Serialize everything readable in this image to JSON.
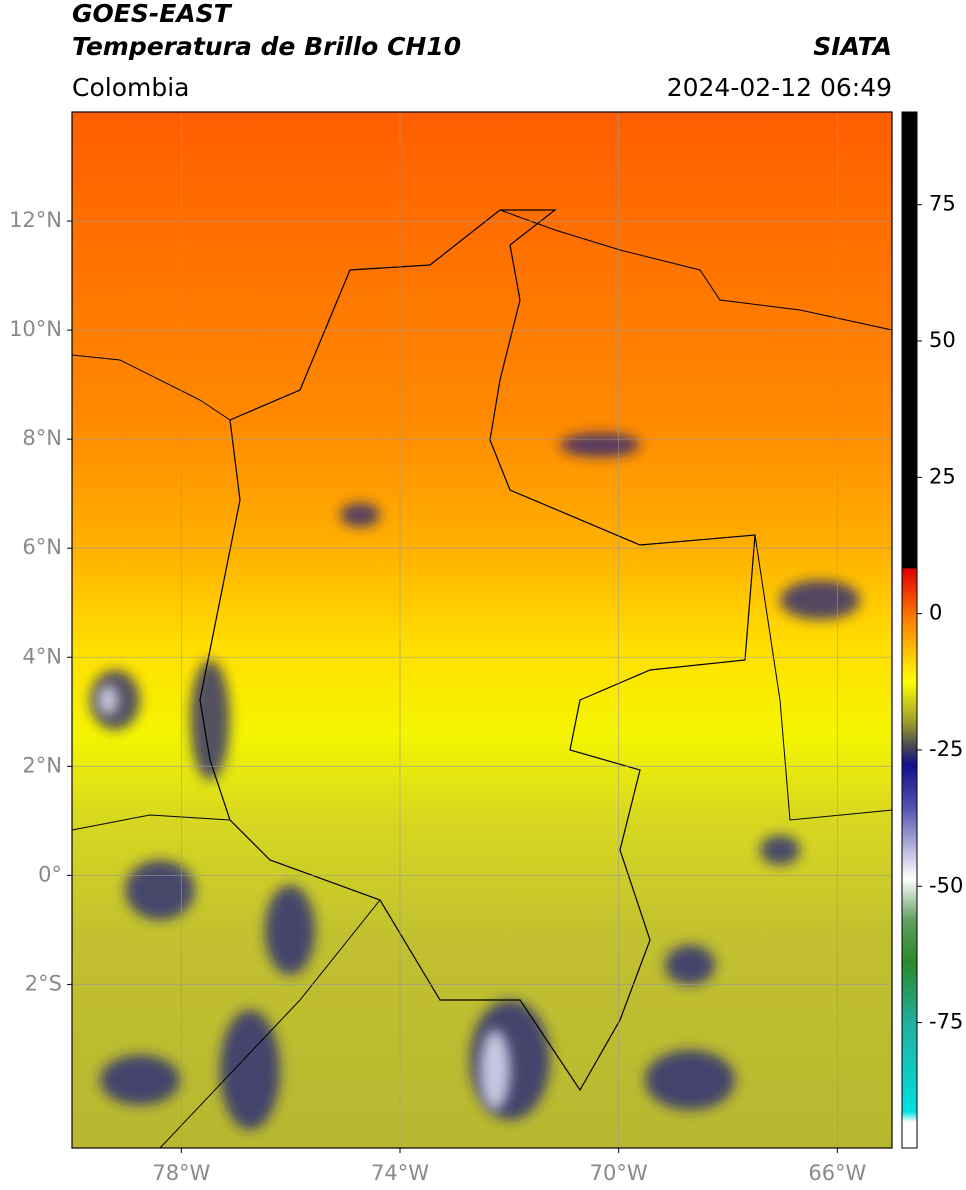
{
  "header": {
    "satellite": "GOES-EAST",
    "product": "Temperatura de Brillo CH10",
    "source": "SIATA",
    "region": "Colombia",
    "datetime": "2024-02-12 06:49"
  },
  "map": {
    "xlim": [
      -80,
      -65
    ],
    "ylim": [
      -5,
      14
    ],
    "xticks": [
      {
        "value": -78,
        "label": "78°W"
      },
      {
        "value": -74,
        "label": "74°W"
      },
      {
        "value": -70,
        "label": "70°W"
      },
      {
        "value": -66,
        "label": "66°W"
      }
    ],
    "yticks": [
      {
        "value": 12,
        "label": "12°N"
      },
      {
        "value": 10,
        "label": "10°N"
      },
      {
        "value": 8,
        "label": "8°N"
      },
      {
        "value": 6,
        "label": "6°N"
      },
      {
        "value": 4,
        "label": "4°N"
      },
      {
        "value": 2,
        "label": "2°N"
      },
      {
        "value": 0,
        "label": "0°"
      },
      {
        "value": -2,
        "label": "2°S"
      }
    ],
    "grid": true
  },
  "colorbar": {
    "lim": [
      -98,
      92
    ],
    "ticks": [
      75,
      50,
      25,
      0,
      -25,
      -50,
      -75
    ]
  }
}
